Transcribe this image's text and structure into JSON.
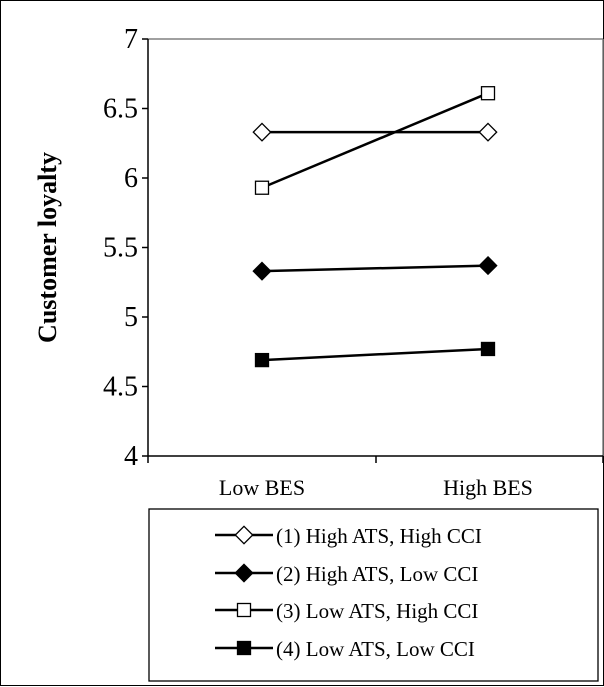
{
  "chart_data": {
    "type": "line",
    "title": "",
    "xlabel": "",
    "ylabel": "Customer loyalty",
    "categories": [
      "Low BES",
      "High BES"
    ],
    "ylim": [
      4,
      7
    ],
    "yticks": [
      "4",
      "4.5",
      "5",
      "5.5",
      "6",
      "6.5",
      "7"
    ],
    "grid": false,
    "legend_placement": "bottom",
    "series": [
      {
        "name": "(1) High ATS, High CCI",
        "values": [
          6.33,
          6.33
        ],
        "marker": "diamond-open",
        "color": "#000000"
      },
      {
        "name": "(2) High ATS, Low CCI",
        "values": [
          5.33,
          5.37
        ],
        "marker": "diamond-filled",
        "color": "#000000"
      },
      {
        "name": "(3) Low ATS, High CCI",
        "values": [
          5.93,
          6.61
        ],
        "marker": "square-open",
        "color": "#000000"
      },
      {
        "name": "(4) Low ATS, Low CCI",
        "values": [
          4.69,
          4.77
        ],
        "marker": "square-filled",
        "color": "#000000"
      }
    ]
  }
}
